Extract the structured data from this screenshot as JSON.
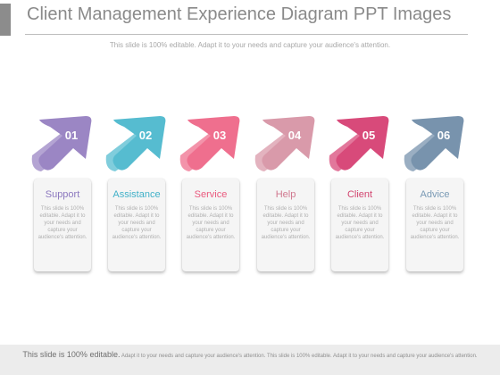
{
  "header": {
    "title": "Client Management Experience Diagram PPT Images",
    "subtitle": "This slide is 100% editable. Adapt it to your needs and capture your audience's attention."
  },
  "steps": [
    {
      "number": "01",
      "label": "Support",
      "color": "#9b86c4",
      "label_color": "#8c78bf",
      "text": "This slide is 100% editable. Adapt it to your needs and capture your audience's attention."
    },
    {
      "number": "02",
      "label": "Assistance",
      "color": "#56bcd0",
      "label_color": "#3fb0c8",
      "text": "This slide is 100% editable. Adapt it to your needs and capture your audience's attention."
    },
    {
      "number": "03",
      "label": "Service",
      "color": "#ef6f8e",
      "label_color": "#ea5a7e",
      "text": "This slide is 100% editable. Adapt it to your needs and capture your audience's attention."
    },
    {
      "number": "04",
      "label": "Help",
      "color": "#d99aaa",
      "label_color": "#d0788f",
      "text": "This slide is 100% editable. Adapt it to your needs and capture your audience's attention."
    },
    {
      "number": "05",
      "label": "Client",
      "color": "#d84a7a",
      "label_color": "#d2456f",
      "text": "This slide is 100% editable. Adapt it to your needs and capture your audience's attention."
    },
    {
      "number": "06",
      "label": "Advice",
      "color": "#7893ad",
      "label_color": "#7a9ab5",
      "text": "This slide is 100% editable. Adapt it to your needs and capture your audience's attention."
    }
  ],
  "footer": {
    "lead": "This slide is 100% editable.",
    "text": "Adapt it to your needs and capture your audience's attention. This slide is 100% editable. Adapt it to your needs and capture your audience's attention."
  }
}
